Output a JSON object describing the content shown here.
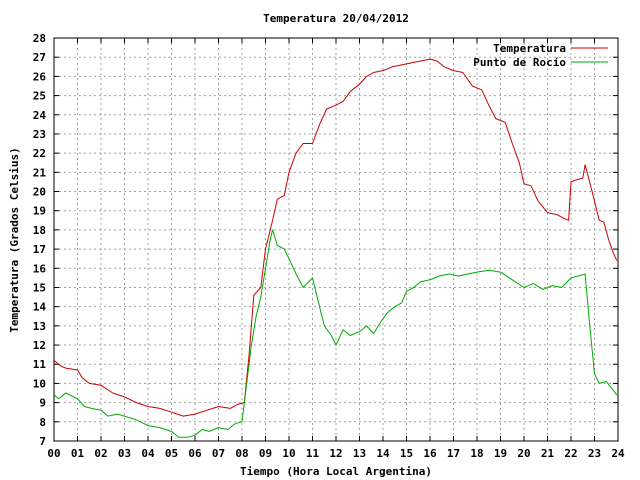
{
  "chart_data": {
    "type": "line",
    "title": "Temperatura 20/04/2012",
    "xlabel": "Tiempo (Hora Local Argentina)",
    "ylabel": "Temperatura (Grados Celsius)",
    "xlim": [
      0,
      24
    ],
    "ylim": [
      7,
      28
    ],
    "grid": true,
    "legend_position": "top-right",
    "x_tick_labels": [
      "00",
      "01",
      "02",
      "03",
      "04",
      "05",
      "06",
      "07",
      "08",
      "09",
      "10",
      "11",
      "12",
      "13",
      "14",
      "15",
      "16",
      "17",
      "18",
      "19",
      "20",
      "21",
      "22",
      "23",
      "24"
    ],
    "y_ticks": [
      7,
      8,
      9,
      10,
      11,
      12,
      13,
      14,
      15,
      16,
      17,
      18,
      19,
      20,
      21,
      22,
      23,
      24,
      25,
      26,
      27,
      28
    ],
    "series": [
      {
        "name": "Temperatura",
        "color": "#cc0000",
        "points": [
          [
            0.0,
            11.2
          ],
          [
            0.3,
            10.9
          ],
          [
            0.5,
            10.8
          ],
          [
            1.0,
            10.7
          ],
          [
            1.2,
            10.3
          ],
          [
            1.5,
            10.0
          ],
          [
            2.0,
            9.9
          ],
          [
            2.5,
            9.5
          ],
          [
            3.0,
            9.3
          ],
          [
            3.5,
            9.0
          ],
          [
            4.0,
            8.8
          ],
          [
            4.5,
            8.7
          ],
          [
            5.0,
            8.5
          ],
          [
            5.5,
            8.3
          ],
          [
            6.0,
            8.4
          ],
          [
            6.5,
            8.6
          ],
          [
            7.0,
            8.8
          ],
          [
            7.5,
            8.7
          ],
          [
            7.8,
            8.9
          ],
          [
            8.1,
            9.0
          ],
          [
            8.3,
            11.5
          ],
          [
            8.5,
            14.6
          ],
          [
            8.8,
            15.0
          ],
          [
            9.0,
            17.0
          ],
          [
            9.3,
            18.5
          ],
          [
            9.5,
            19.6
          ],
          [
            9.8,
            19.8
          ],
          [
            10.0,
            21.0
          ],
          [
            10.3,
            22.0
          ],
          [
            10.6,
            22.5
          ],
          [
            11.0,
            22.5
          ],
          [
            11.3,
            23.5
          ],
          [
            11.6,
            24.3
          ],
          [
            12.0,
            24.5
          ],
          [
            12.3,
            24.7
          ],
          [
            12.6,
            25.2
          ],
          [
            13.0,
            25.6
          ],
          [
            13.3,
            26.0
          ],
          [
            13.6,
            26.2
          ],
          [
            14.0,
            26.3
          ],
          [
            14.4,
            26.5
          ],
          [
            14.8,
            26.6
          ],
          [
            15.2,
            26.7
          ],
          [
            15.6,
            26.8
          ],
          [
            16.0,
            26.9
          ],
          [
            16.3,
            26.8
          ],
          [
            16.6,
            26.5
          ],
          [
            17.0,
            26.3
          ],
          [
            17.4,
            26.2
          ],
          [
            17.8,
            25.5
          ],
          [
            18.2,
            25.3
          ],
          [
            18.5,
            24.5
          ],
          [
            18.8,
            23.8
          ],
          [
            19.2,
            23.6
          ],
          [
            19.5,
            22.5
          ],
          [
            19.8,
            21.5
          ],
          [
            20.0,
            20.4
          ],
          [
            20.3,
            20.3
          ],
          [
            20.6,
            19.5
          ],
          [
            21.0,
            18.9
          ],
          [
            21.4,
            18.8
          ],
          [
            21.7,
            18.6
          ],
          [
            21.9,
            18.5
          ],
          [
            22.0,
            20.5
          ],
          [
            22.2,
            20.6
          ],
          [
            22.5,
            20.7
          ],
          [
            22.6,
            21.4
          ],
          [
            22.9,
            20.0
          ],
          [
            23.2,
            18.5
          ],
          [
            23.4,
            18.4
          ],
          [
            23.6,
            17.5
          ],
          [
            23.8,
            16.8
          ],
          [
            23.95,
            16.4
          ]
        ]
      },
      {
        "name": "Punto de Rocío",
        "color": "#00aa00",
        "points": [
          [
            0.0,
            9.4
          ],
          [
            0.2,
            9.2
          ],
          [
            0.5,
            9.5
          ],
          [
            1.0,
            9.2
          ],
          [
            1.3,
            8.8
          ],
          [
            1.6,
            8.7
          ],
          [
            2.0,
            8.6
          ],
          [
            2.3,
            8.3
          ],
          [
            2.7,
            8.4
          ],
          [
            3.0,
            8.3
          ],
          [
            3.5,
            8.1
          ],
          [
            4.0,
            7.8
          ],
          [
            4.5,
            7.7
          ],
          [
            5.0,
            7.5
          ],
          [
            5.3,
            7.2
          ],
          [
            5.7,
            7.2
          ],
          [
            6.0,
            7.3
          ],
          [
            6.3,
            7.6
          ],
          [
            6.6,
            7.5
          ],
          [
            7.0,
            7.7
          ],
          [
            7.4,
            7.6
          ],
          [
            7.7,
            7.9
          ],
          [
            8.0,
            8.0
          ],
          [
            8.2,
            10.0
          ],
          [
            8.4,
            12.0
          ],
          [
            8.6,
            13.5
          ],
          [
            8.8,
            14.5
          ],
          [
            9.0,
            16.0
          ],
          [
            9.2,
            17.5
          ],
          [
            9.3,
            18.0
          ],
          [
            9.5,
            17.2
          ],
          [
            9.8,
            17.0
          ],
          [
            10.0,
            16.5
          ],
          [
            10.3,
            15.7
          ],
          [
            10.6,
            15.0
          ],
          [
            11.0,
            15.5
          ],
          [
            11.2,
            14.5
          ],
          [
            11.5,
            13.0
          ],
          [
            11.8,
            12.5
          ],
          [
            12.0,
            12.0
          ],
          [
            12.3,
            12.8
          ],
          [
            12.6,
            12.5
          ],
          [
            13.0,
            12.7
          ],
          [
            13.3,
            13.0
          ],
          [
            13.6,
            12.6
          ],
          [
            13.9,
            13.2
          ],
          [
            14.2,
            13.7
          ],
          [
            14.5,
            14.0
          ],
          [
            14.8,
            14.2
          ],
          [
            15.0,
            14.8
          ],
          [
            15.3,
            15.0
          ],
          [
            15.6,
            15.3
          ],
          [
            16.0,
            15.4
          ],
          [
            16.4,
            15.6
          ],
          [
            16.8,
            15.7
          ],
          [
            17.2,
            15.6
          ],
          [
            17.6,
            15.7
          ],
          [
            18.0,
            15.8
          ],
          [
            18.5,
            15.9
          ],
          [
            19.0,
            15.8
          ],
          [
            19.5,
            15.4
          ],
          [
            20.0,
            15.0
          ],
          [
            20.4,
            15.2
          ],
          [
            20.8,
            14.9
          ],
          [
            21.2,
            15.1
          ],
          [
            21.6,
            15.0
          ],
          [
            22.0,
            15.5
          ],
          [
            22.3,
            15.6
          ],
          [
            22.6,
            15.7
          ],
          [
            22.8,
            13.0
          ],
          [
            23.0,
            10.5
          ],
          [
            23.2,
            10.0
          ],
          [
            23.5,
            10.1
          ],
          [
            23.7,
            9.8
          ],
          [
            23.95,
            9.4
          ]
        ]
      }
    ]
  }
}
